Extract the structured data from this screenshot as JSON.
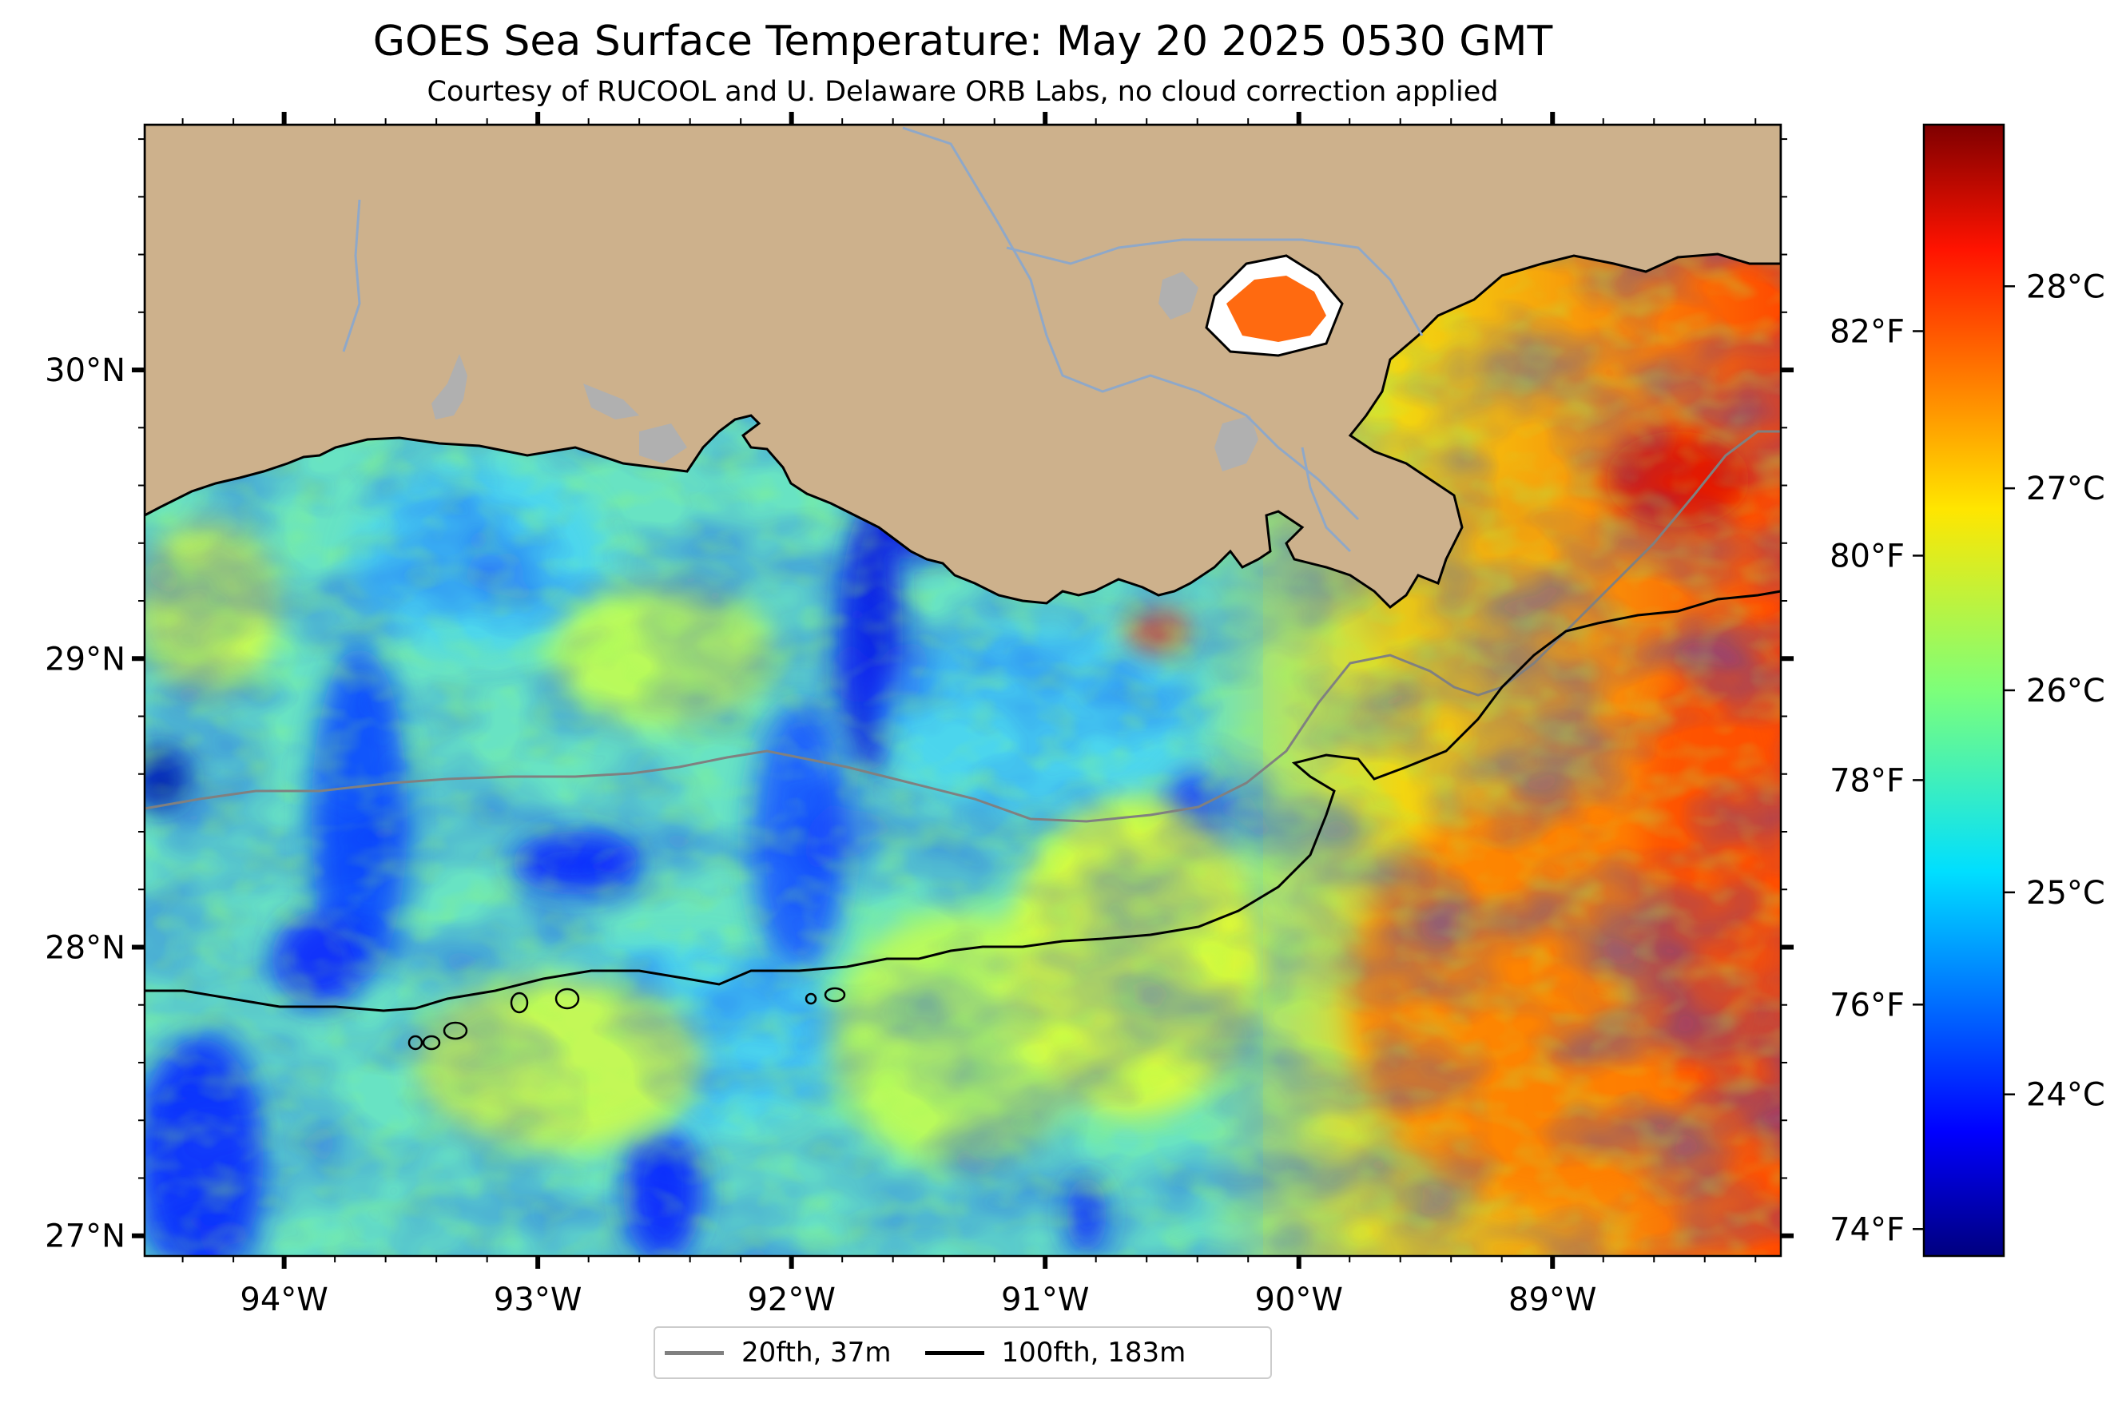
{
  "title": "GOES Sea Surface Temperature: May 20 2025 0530 GMT",
  "subtitle": "Courtesy of RUCOOL and U. Delaware ORB Labs, no cloud correction applied",
  "map": {
    "extent": {
      "lon": [
        -94.55,
        -88.1
      ],
      "lat": [
        26.93,
        30.85
      ]
    },
    "lat_ticks": [
      {
        "value": 30,
        "label": "30°N"
      },
      {
        "value": 29,
        "label": "29°N"
      },
      {
        "value": 28,
        "label": "28°N"
      },
      {
        "value": 27,
        "label": "27°N"
      }
    ],
    "lon_ticks": [
      {
        "value": -94,
        "label": "94°W"
      },
      {
        "value": -93,
        "label": "93°W"
      },
      {
        "value": -92,
        "label": "92°W"
      },
      {
        "value": -91,
        "label": "91°W"
      },
      {
        "value": -90,
        "label": "90°W"
      },
      {
        "value": -89,
        "label": "89°W"
      }
    ],
    "land_color": "#cdb18c",
    "water_body_color": "#b0b0b0",
    "river_color": "#8fa8c8"
  },
  "colorbar": {
    "colormap": "jet",
    "celsius_range": [
      23.2,
      28.8
    ],
    "celsius_ticks": [
      {
        "value": 24,
        "label": "24°C"
      },
      {
        "value": 25,
        "label": "25°C"
      },
      {
        "value": 26,
        "label": "26°C"
      },
      {
        "value": 27,
        "label": "27°C"
      },
      {
        "value": 28,
        "label": "28°C"
      }
    ],
    "fahrenheit_ticks": [
      {
        "value": 74,
        "label": "74°F"
      },
      {
        "value": 76,
        "label": "76°F"
      },
      {
        "value": 78,
        "label": "78°F"
      },
      {
        "value": 80,
        "label": "80°F"
      },
      {
        "value": 82,
        "label": "82°F"
      }
    ]
  },
  "legend": {
    "items": [
      {
        "label": "20fth, 37m",
        "color": "#808080"
      },
      {
        "label": "100fth, 183m",
        "color": "#000000"
      }
    ]
  }
}
